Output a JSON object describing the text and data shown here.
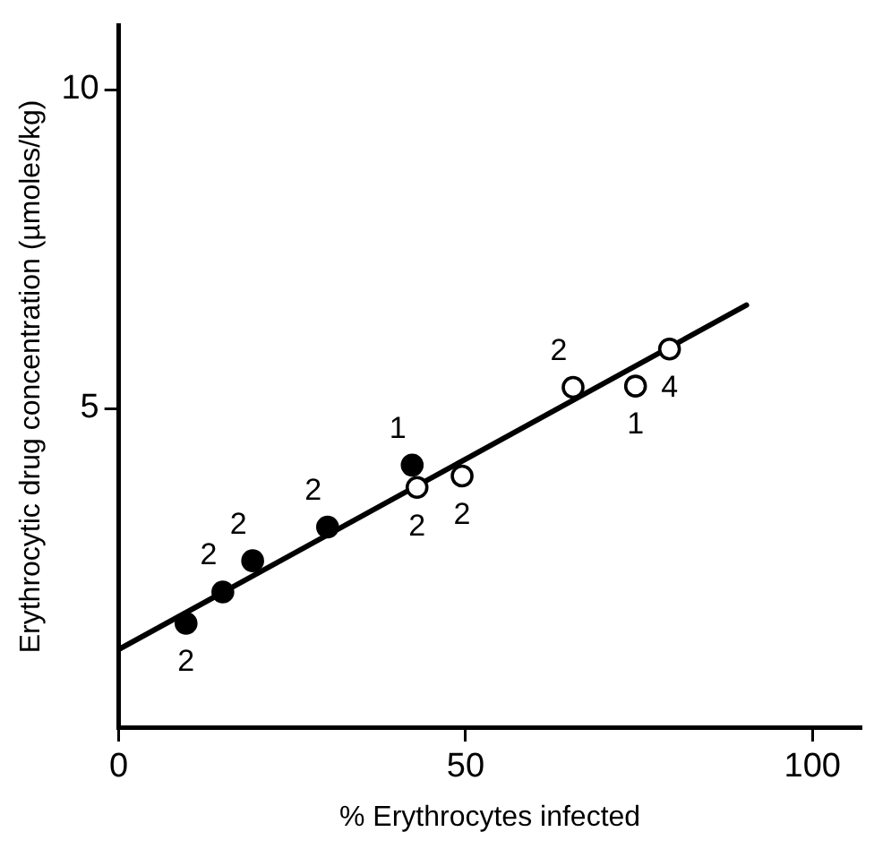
{
  "chart_data": {
    "type": "scatter",
    "xlabel": "% Erythrocytes infected",
    "ylabel": "Erythrocytic drug concentration (µmoles/kg)",
    "xlim": [
      0,
      107
    ],
    "ylim": [
      0,
      11
    ],
    "xticks": [
      0,
      50,
      100
    ],
    "yticks": [
      5,
      10
    ],
    "grid": false,
    "legend": false,
    "series": [
      {
        "color": "#000000",
        "marker": "circle",
        "x": [
          9.7,
          15.0,
          19.3,
          30.1,
          42.3
        ],
        "values": [
          1.63,
          2.12,
          2.61,
          3.14,
          4.11
        ]
      },
      {
        "color": "#ffffff",
        "marker": "circle",
        "x": [
          43.0,
          49.5,
          65.5,
          74.5,
          79.4
        ],
        "values": [
          3.76,
          3.94,
          5.33,
          5.35,
          5.93
        ]
      },
      {
        "type": "line",
        "color": "#000000",
        "marker": "none",
        "x": [
          0,
          90.5
        ],
        "values": [
          1.22,
          6.62
        ]
      }
    ],
    "annotations": [
      {
        "text": "2",
        "x": 9.7,
        "y": 1.63
      },
      {
        "text": "2",
        "x": 15.0,
        "y": 2.12
      },
      {
        "text": "2",
        "x": 19.3,
        "y": 2.61
      },
      {
        "text": "2",
        "x": 30.1,
        "y": 3.14
      },
      {
        "text": "1",
        "x": 42.3,
        "y": 4.11
      },
      {
        "text": "2",
        "x": 43.0,
        "y": 3.76
      },
      {
        "text": "2",
        "x": 49.5,
        "y": 3.94
      },
      {
        "text": "2",
        "x": 65.5,
        "y": 5.33
      },
      {
        "text": "1",
        "x": 74.5,
        "y": 5.35
      },
      {
        "text": "4",
        "x": 79.4,
        "y": 5.93
      }
    ]
  }
}
